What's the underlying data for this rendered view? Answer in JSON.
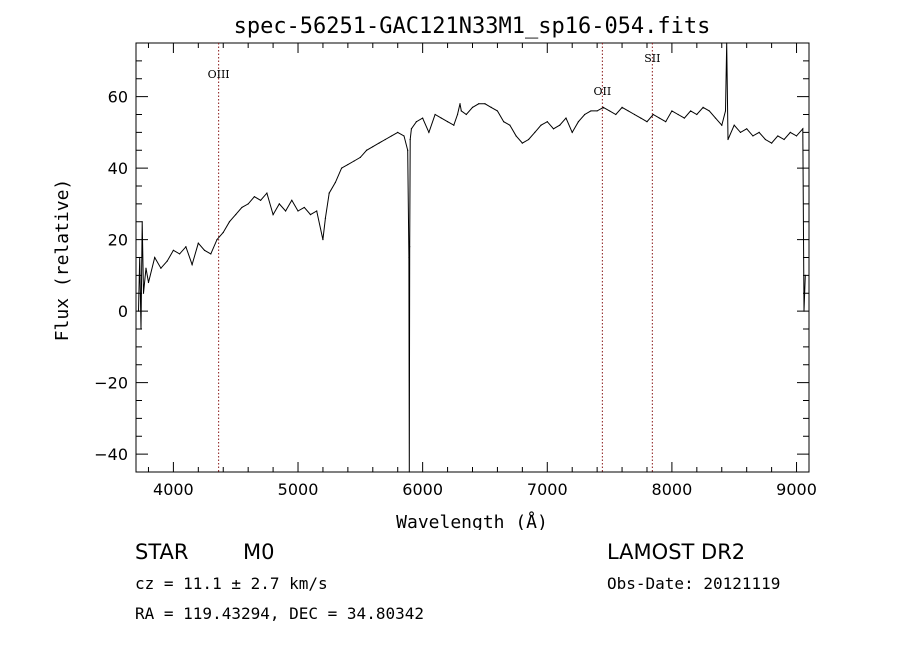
{
  "chart_data": {
    "type": "line",
    "title": "spec-56251-GAC121N33M1_sp16-054.fits",
    "xlabel": "Wavelength (Å)",
    "ylabel": "Flux (relative)",
    "xlim": [
      3700,
      9100
    ],
    "ylim": [
      -45,
      75
    ],
    "xticks": [
      4000,
      5000,
      6000,
      7000,
      8000,
      9000
    ],
    "yticks": [
      -40,
      -20,
      0,
      20,
      40,
      60
    ],
    "grid": false,
    "line_color": "#000000",
    "marker_color": "#8b1a1a",
    "lines": [
      {
        "label": "OIII",
        "x": 4363
      },
      {
        "label": "OII",
        "x": 7442
      },
      {
        "label": "SII",
        "x": 7843
      }
    ],
    "series": [
      {
        "x": [
          3720,
          3730,
          3740,
          3750,
          3760,
          3780,
          3800,
          3850,
          3900,
          3950,
          4000,
          4050,
          4100,
          4150,
          4200,
          4250,
          4300,
          4350,
          4400,
          4450,
          4500,
          4550,
          4600,
          4650,
          4700,
          4750,
          4800,
          4850,
          4900,
          4950,
          5000,
          5050,
          5100,
          5150,
          5200,
          5220,
          5250,
          5300,
          5350,
          5400,
          5450,
          5500,
          5550,
          5600,
          5650,
          5700,
          5750,
          5800,
          5850,
          5880,
          5890,
          5893,
          5896,
          5900,
          5910,
          5950,
          6000,
          6050,
          6100,
          6150,
          6200,
          6250,
          6280,
          6300,
          6310,
          6350,
          6400,
          6450,
          6500,
          6550,
          6600,
          6650,
          6700,
          6750,
          6800,
          6850,
          6900,
          6950,
          7000,
          7050,
          7100,
          7150,
          7200,
          7250,
          7300,
          7350,
          7400,
          7450,
          7500,
          7550,
          7600,
          7650,
          7700,
          7750,
          7800,
          7850,
          7900,
          7950,
          8000,
          8050,
          8100,
          8150,
          8200,
          8250,
          8300,
          8350,
          8400,
          8430,
          8440,
          8450,
          8500,
          8550,
          8600,
          8650,
          8700,
          8750,
          8800,
          8850,
          8900,
          8950,
          9000,
          9050,
          9060,
          9070
        ],
        "values": [
          0,
          15,
          -5,
          25,
          5,
          12,
          8,
          15,
          12,
          14,
          17,
          16,
          18,
          13,
          19,
          17,
          16,
          20,
          22,
          25,
          27,
          29,
          30,
          32,
          31,
          33,
          27,
          30,
          28,
          31,
          28,
          29,
          27,
          28,
          20,
          26,
          33,
          36,
          40,
          41,
          42,
          43,
          45,
          46,
          47,
          48,
          49,
          50,
          49,
          45,
          15,
          -45,
          18,
          48,
          51,
          53,
          54,
          50,
          55,
          54,
          53,
          52,
          55,
          58,
          56,
          55,
          57,
          58,
          58,
          57,
          56,
          53,
          52,
          49,
          47,
          48,
          50,
          52,
          53,
          51,
          52,
          54,
          50,
          53,
          55,
          56,
          56,
          57,
          56,
          55,
          57,
          56,
          55,
          54,
          53,
          55,
          54,
          53,
          56,
          55,
          54,
          56,
          55,
          57,
          56,
          54,
          52,
          56,
          75,
          48,
          52,
          50,
          51,
          49,
          50,
          48,
          47,
          49,
          48,
          50,
          49,
          51,
          0,
          10
        ]
      }
    ]
  },
  "info": {
    "class": "STAR",
    "subclass": "M0",
    "survey": "LAMOST DR2",
    "cz": "cz = 11.1 ± 2.7 km/s",
    "obs_date": "Obs-Date: 20121119",
    "coords": "RA = 119.43294, DEC =  34.80342"
  }
}
